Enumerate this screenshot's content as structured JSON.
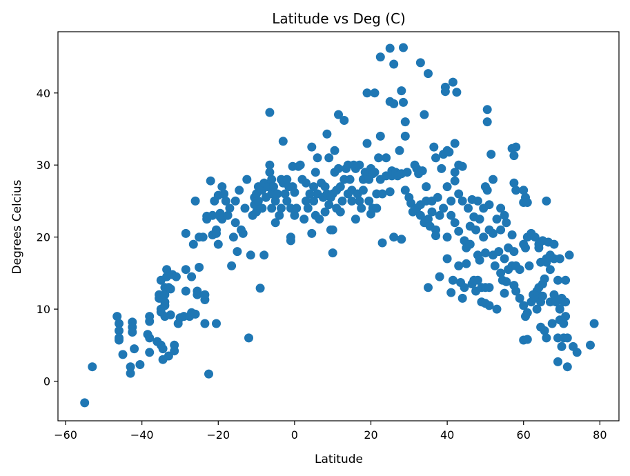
{
  "chart_data": {
    "type": "scatter",
    "title": "Latitude vs Deg (C)",
    "xlabel": "Latitude",
    "ylabel": "Degrees Celcius",
    "xlim": [
      -62,
      85
    ],
    "ylim": [
      -5.5,
      48.5
    ],
    "xticks": [
      -60,
      -40,
      -20,
      0,
      20,
      40,
      60,
      80
    ],
    "yticks": [
      0,
      10,
      20,
      30,
      40
    ],
    "grid": false,
    "marker_color": "#1f77b4",
    "points": [
      [
        -55,
        -3
      ],
      [
        -53,
        2
      ],
      [
        -46.5,
        9
      ],
      [
        -46,
        8
      ],
      [
        -46,
        7
      ],
      [
        -46,
        6
      ],
      [
        -46,
        5.7
      ],
      [
        -45,
        3.7
      ],
      [
        -43,
        1.1
      ],
      [
        -43,
        2
      ],
      [
        -42.5,
        8.2
      ],
      [
        -42.5,
        7.5
      ],
      [
        -42.5,
        6.8
      ],
      [
        -42,
        4.5
      ],
      [
        -40.5,
        2.3
      ],
      [
        -38.5,
        6.5
      ],
      [
        -38,
        6
      ],
      [
        -38,
        4
      ],
      [
        -38,
        9
      ],
      [
        -38,
        8.3
      ],
      [
        -36,
        5.5
      ],
      [
        -35.5,
        12
      ],
      [
        -35.5,
        11.5
      ],
      [
        -35,
        10
      ],
      [
        -35,
        9.6
      ],
      [
        -35,
        14
      ],
      [
        -35,
        5
      ],
      [
        -34.5,
        3
      ],
      [
        -34.5,
        4.5
      ],
      [
        -34,
        13
      ],
      [
        -34,
        12
      ],
      [
        -34,
        11
      ],
      [
        -34,
        10.5
      ],
      [
        -34,
        9
      ],
      [
        -33.5,
        15.5
      ],
      [
        -33.5,
        14.5
      ],
      [
        -33,
        13
      ],
      [
        -33,
        3.5
      ],
      [
        -32.5,
        12.8
      ],
      [
        -32.5,
        9.2
      ],
      [
        -32,
        14.8
      ],
      [
        -31.5,
        5
      ],
      [
        -31.5,
        4.2
      ],
      [
        -31,
        14.5
      ],
      [
        -30.5,
        8
      ],
      [
        -30,
        8.8
      ],
      [
        -29,
        9
      ],
      [
        -28.5,
        20.5
      ],
      [
        -28.5,
        15.5
      ],
      [
        -28.5,
        12.5
      ],
      [
        -27.5,
        9
      ],
      [
        -27,
        14.5
      ],
      [
        -27,
        9.5
      ],
      [
        -26.5,
        19
      ],
      [
        -26,
        25
      ],
      [
        -26,
        9.3
      ],
      [
        -25.5,
        12.5
      ],
      [
        -25.5,
        12
      ],
      [
        -25,
        15.8
      ],
      [
        -25,
        20
      ],
      [
        -24,
        20
      ],
      [
        -23.5,
        11.3
      ],
      [
        -23.5,
        12
      ],
      [
        -23.5,
        8
      ],
      [
        -23,
        22.5
      ],
      [
        -23,
        22.9
      ],
      [
        -22.5,
        1
      ],
      [
        -22,
        27.8
      ],
      [
        -21.5,
        20.3
      ],
      [
        -21.5,
        23
      ],
      [
        -21,
        25
      ],
      [
        -20.5,
        21
      ],
      [
        -20.5,
        20.5
      ],
      [
        -20.5,
        8
      ],
      [
        -20,
        19
      ],
      [
        -20,
        25.8
      ],
      [
        -19.5,
        22.8
      ],
      [
        -19.5,
        23.3
      ],
      [
        -19,
        27
      ],
      [
        -19,
        22.5
      ],
      [
        -18.5,
        26
      ],
      [
        -18,
        25
      ],
      [
        -17.5,
        23
      ],
      [
        -17,
        24
      ],
      [
        -16.5,
        16
      ],
      [
        -16,
        20
      ],
      [
        -15.5,
        25
      ],
      [
        -15.5,
        22
      ],
      [
        -15,
        18
      ],
      [
        -14.5,
        26.5
      ],
      [
        -14,
        21
      ],
      [
        -13.5,
        20.5
      ],
      [
        -13,
        24
      ],
      [
        -12.5,
        28
      ],
      [
        -12,
        6
      ],
      [
        -11.5,
        17.5
      ],
      [
        -11,
        23
      ],
      [
        -10.5,
        25.5
      ],
      [
        -10.5,
        24.5
      ],
      [
        -10,
        26
      ],
      [
        -10,
        23.5
      ],
      [
        -9.5,
        27
      ],
      [
        -9.5,
        25
      ],
      [
        -9,
        12.9
      ],
      [
        -8.5,
        26.5
      ],
      [
        -8.5,
        24
      ],
      [
        -8,
        17.5
      ],
      [
        -8,
        27.5
      ],
      [
        -7.5,
        25.5
      ],
      [
        -7,
        27
      ],
      [
        -6.5,
        37.3
      ],
      [
        -6.5,
        30
      ],
      [
        -6.5,
        29
      ],
      [
        -6,
        28
      ],
      [
        -6,
        26
      ],
      [
        -6,
        24
      ],
      [
        -5.5,
        27
      ],
      [
        -5,
        22
      ],
      [
        -5,
        25
      ],
      [
        -4.5,
        26
      ],
      [
        -4,
        23
      ],
      [
        -3.5,
        24
      ],
      [
        -3.5,
        28
      ],
      [
        -3,
        33.3
      ],
      [
        -3,
        27.5
      ],
      [
        -2.5,
        26
      ],
      [
        -2,
        28
      ],
      [
        -2,
        25
      ],
      [
        -1.5,
        27
      ],
      [
        -1,
        20
      ],
      [
        -1,
        19.5
      ],
      [
        -1,
        24
      ],
      [
        -0.5,
        29.8
      ],
      [
        -0.5,
        27
      ],
      [
        0,
        26.2
      ],
      [
        0,
        23
      ],
      [
        0.5,
        24
      ],
      [
        1,
        29.8
      ],
      [
        1.5,
        30
      ],
      [
        2,
        28
      ],
      [
        2.5,
        22.5
      ],
      [
        3,
        27.5
      ],
      [
        3,
        25
      ],
      [
        3.5,
        24
      ],
      [
        4,
        26
      ],
      [
        4.5,
        20.5
      ],
      [
        4.5,
        32.5
      ],
      [
        5,
        27
      ],
      [
        5,
        25
      ],
      [
        5.5,
        29
      ],
      [
        5.5,
        23
      ],
      [
        6,
        31
      ],
      [
        6,
        26
      ],
      [
        6.5,
        22.5
      ],
      [
        7,
        27.5
      ],
      [
        7.5,
        25.5
      ],
      [
        8,
        27
      ],
      [
        8,
        23.5
      ],
      [
        8.5,
        34.3
      ],
      [
        8.5,
        26
      ],
      [
        9,
        24.5
      ],
      [
        9,
        31
      ],
      [
        9.5,
        21
      ],
      [
        9.5,
        25.5
      ],
      [
        10,
        17.8
      ],
      [
        10,
        21
      ],
      [
        10,
        26
      ],
      [
        10.5,
        29
      ],
      [
        10.5,
        32
      ],
      [
        11,
        24
      ],
      [
        11,
        26.5
      ],
      [
        11.5,
        37
      ],
      [
        11.5,
        29.5
      ],
      [
        12,
        23.5
      ],
      [
        12,
        27
      ],
      [
        12.5,
        25
      ],
      [
        13,
        36.2
      ],
      [
        13,
        28
      ],
      [
        13.5,
        29.5
      ],
      [
        14,
        26
      ],
      [
        14,
        30
      ],
      [
        14.5,
        28
      ],
      [
        15,
        25
      ],
      [
        15,
        26.5
      ],
      [
        15.5,
        30
      ],
      [
        16,
        22.5
      ],
      [
        16,
        29.5
      ],
      [
        16.5,
        26
      ],
      [
        17,
        30
      ],
      [
        17,
        25
      ],
      [
        17.5,
        24
      ],
      [
        18,
        28
      ],
      [
        18,
        26.5
      ],
      [
        18.5,
        29
      ],
      [
        19,
        40
      ],
      [
        19,
        33
      ],
      [
        19.5,
        28
      ],
      [
        19.5,
        25
      ],
      [
        20,
        29.5
      ],
      [
        20,
        23.2
      ],
      [
        20.5,
        24
      ],
      [
        20.5,
        28.8
      ],
      [
        21,
        40
      ],
      [
        21,
        29
      ],
      [
        21.5,
        26
      ],
      [
        21.5,
        24
      ],
      [
        22,
        31
      ],
      [
        22.5,
        45
      ],
      [
        22.5,
        34
      ],
      [
        22.5,
        28
      ],
      [
        23,
        19.2
      ],
      [
        23,
        26
      ],
      [
        24,
        31
      ],
      [
        24,
        28.5
      ],
      [
        25,
        46.2
      ],
      [
        25,
        38.8
      ],
      [
        25,
        26.3
      ],
      [
        25.5,
        28.5
      ],
      [
        25.5,
        29.2
      ],
      [
        26,
        20
      ],
      [
        26,
        44
      ],
      [
        26,
        38.5
      ],
      [
        26.5,
        29
      ],
      [
        27,
        28.5
      ],
      [
        27.5,
        32
      ],
      [
        28,
        40.3
      ],
      [
        28,
        28.8
      ],
      [
        28,
        19.7
      ],
      [
        28.5,
        46.3
      ],
      [
        28.5,
        38.7
      ],
      [
        29,
        36
      ],
      [
        29,
        34
      ],
      [
        29,
        26.5
      ],
      [
        29.5,
        29
      ],
      [
        30,
        25.5
      ],
      [
        30.5,
        24.7
      ],
      [
        31,
        23.5
      ],
      [
        31.5,
        30
      ],
      [
        32,
        29.5
      ],
      [
        32,
        24
      ],
      [
        32.5,
        28.8
      ],
      [
        33,
        44.2
      ],
      [
        33,
        24.5
      ],
      [
        33,
        23
      ],
      [
        33.5,
        29.2
      ],
      [
        34,
        37
      ],
      [
        34,
        22
      ],
      [
        34.5,
        27
      ],
      [
        34.5,
        25
      ],
      [
        35,
        42.7
      ],
      [
        35,
        13
      ],
      [
        35,
        22.5
      ],
      [
        35.5,
        21.5
      ],
      [
        36,
        25
      ],
      [
        36,
        23.5
      ],
      [
        36.5,
        32.5
      ],
      [
        37,
        31
      ],
      [
        37,
        21
      ],
      [
        37,
        20.2
      ],
      [
        37.5,
        25.5
      ],
      [
        38,
        14.5
      ],
      [
        38,
        23
      ],
      [
        38.5,
        29.5
      ],
      [
        39,
        31.5
      ],
      [
        39,
        24
      ],
      [
        39.5,
        40.8
      ],
      [
        39.5,
        40.2
      ],
      [
        40,
        32
      ],
      [
        40,
        27
      ],
      [
        40,
        20
      ],
      [
        40,
        17
      ],
      [
        40.5,
        31.8
      ],
      [
        41,
        25
      ],
      [
        41,
        23
      ],
      [
        41,
        12.3
      ],
      [
        41.5,
        41.5
      ],
      [
        41.5,
        14
      ],
      [
        42,
        33
      ],
      [
        42,
        29
      ],
      [
        42,
        27.8
      ],
      [
        42,
        22
      ],
      [
        42.5,
        40.1
      ],
      [
        43,
        30
      ],
      [
        43,
        26
      ],
      [
        43,
        20.8
      ],
      [
        43,
        16
      ],
      [
        43.5,
        13.7
      ],
      [
        44,
        29.8
      ],
      [
        44,
        25
      ],
      [
        44,
        11.5
      ],
      [
        44.5,
        19.5
      ],
      [
        44.5,
        13
      ],
      [
        45,
        18.5
      ],
      [
        45,
        16.3
      ],
      [
        45.5,
        24
      ],
      [
        46,
        21.5
      ],
      [
        46,
        19
      ],
      [
        46.5,
        25.2
      ],
      [
        46.5,
        13.5
      ],
      [
        47,
        22.8
      ],
      [
        47,
        14
      ],
      [
        47.5,
        21
      ],
      [
        47.5,
        12.5
      ],
      [
        48,
        25
      ],
      [
        48,
        17.5
      ],
      [
        48,
        14
      ],
      [
        48.5,
        22.5
      ],
      [
        48.5,
        16.8
      ],
      [
        49,
        11
      ],
      [
        49,
        13
      ],
      [
        49.5,
        24
      ],
      [
        49.5,
        20
      ],
      [
        50,
        27
      ],
      [
        50,
        17.8
      ],
      [
        50,
        13
      ],
      [
        50,
        10.8
      ],
      [
        50.5,
        37.7
      ],
      [
        50.5,
        36
      ],
      [
        50.5,
        26.5
      ],
      [
        51,
        24.5
      ],
      [
        51,
        21
      ],
      [
        51,
        13
      ],
      [
        51.5,
        31.5
      ],
      [
        51,
        10.5
      ],
      [
        52,
        28
      ],
      [
        52,
        20.5
      ],
      [
        52,
        17.5
      ],
      [
        52.5,
        16
      ],
      [
        53,
        22.5
      ],
      [
        53,
        10
      ],
      [
        53.5,
        18
      ],
      [
        54,
        24
      ],
      [
        54,
        21
      ],
      [
        54,
        15
      ],
      [
        54.5,
        14
      ],
      [
        55,
        23
      ],
      [
        55,
        17
      ],
      [
        55,
        12.2
      ],
      [
        55.5,
        22
      ],
      [
        55.5,
        13.8
      ],
      [
        56,
        18.5
      ],
      [
        56,
        15.5
      ],
      [
        57,
        32.3
      ],
      [
        57,
        20.3
      ],
      [
        57,
        16
      ],
      [
        57.5,
        31.3
      ],
      [
        57.5,
        27.5
      ],
      [
        57.5,
        18
      ],
      [
        57.5,
        13.3
      ],
      [
        58,
        32.5
      ],
      [
        58,
        26.5
      ],
      [
        58,
        16
      ],
      [
        58,
        12.5
      ],
      [
        59,
        15.5
      ],
      [
        59,
        11.5
      ],
      [
        60,
        26.5
      ],
      [
        60,
        24.8
      ],
      [
        60,
        19
      ],
      [
        60,
        10.5
      ],
      [
        60,
        5.7
      ],
      [
        60.5,
        25.5
      ],
      [
        60.5,
        18.5
      ],
      [
        60.5,
        9
      ],
      [
        61,
        24.8
      ],
      [
        61,
        20
      ],
      [
        61,
        9.5
      ],
      [
        61,
        5.8
      ],
      [
        61.5,
        16
      ],
      [
        62,
        20.5
      ],
      [
        62,
        11
      ],
      [
        62.5,
        12
      ],
      [
        63,
        20
      ],
      [
        63,
        11.5
      ],
      [
        63.5,
        12.5
      ],
      [
        63.5,
        10
      ],
      [
        64,
        13
      ],
      [
        64,
        19
      ],
      [
        64,
        18.5
      ],
      [
        64.5,
        16.5
      ],
      [
        64.5,
        11
      ],
      [
        64.5,
        7.5
      ],
      [
        65,
        13.5
      ],
      [
        65,
        19.5
      ],
      [
        65,
        11.8
      ],
      [
        65.5,
        14.2
      ],
      [
        65.5,
        7
      ],
      [
        66,
        25
      ],
      [
        66,
        17
      ],
      [
        66,
        16.5
      ],
      [
        66,
        6
      ],
      [
        66.5,
        19.3
      ],
      [
        67,
        17.5
      ],
      [
        67,
        15.5
      ],
      [
        67,
        11
      ],
      [
        67.5,
        8
      ],
      [
        68,
        19
      ],
      [
        68,
        12
      ],
      [
        68,
        17
      ],
      [
        68.5,
        11
      ],
      [
        69,
        14
      ],
      [
        69,
        6
      ],
      [
        69,
        2.7
      ],
      [
        69.5,
        17
      ],
      [
        69.5,
        10
      ],
      [
        69.5,
        8.5
      ],
      [
        70,
        11.5
      ],
      [
        70,
        4.8
      ],
      [
        70.5,
        11
      ],
      [
        70.5,
        8
      ],
      [
        70.5,
        6
      ],
      [
        71,
        9
      ],
      [
        71,
        14
      ],
      [
        71,
        11
      ],
      [
        71.5,
        2
      ],
      [
        71.5,
        6
      ],
      [
        72,
        17.5
      ],
      [
        73,
        4.8
      ],
      [
        74,
        4
      ],
      [
        77.5,
        5
      ],
      [
        78.5,
        8
      ]
    ]
  }
}
